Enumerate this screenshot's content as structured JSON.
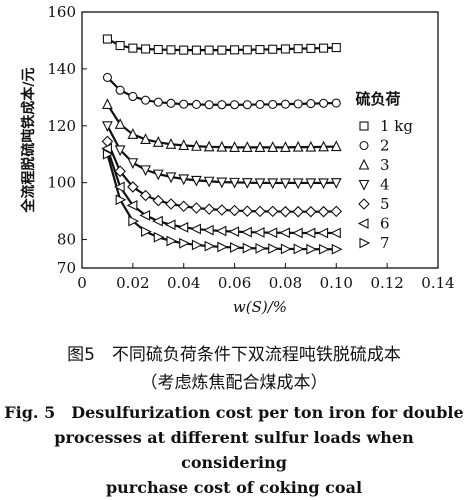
{
  "chart_data": {
    "type": "line",
    "xlabel": "w(S)/%",
    "ylabel": "全流程脱硫吨铁成本/元",
    "xlim": [
      0,
      0.14
    ],
    "ylim": [
      70,
      160
    ],
    "x_ticks": [
      0,
      0.02,
      0.04,
      0.06,
      0.08,
      0.1,
      0.12,
      0.14
    ],
    "x_tick_labels": [
      "0",
      "0.02",
      "0.04",
      "0.06",
      "0.08",
      "0.10",
      "0.12",
      "0.14"
    ],
    "y_ticks": [
      70,
      80,
      100,
      120,
      140,
      160
    ],
    "y_tick_labels": [
      "70",
      "80",
      "100",
      "120",
      "140",
      "160"
    ],
    "grid": false,
    "legend": {
      "title": "硫负荷",
      "position": "right"
    },
    "x": [
      0.01,
      0.015,
      0.02,
      0.025,
      0.03,
      0.035,
      0.04,
      0.045,
      0.05,
      0.055,
      0.06,
      0.065,
      0.07,
      0.075,
      0.08,
      0.085,
      0.09,
      0.095,
      0.1
    ],
    "series": [
      {
        "name": "1 kg",
        "marker": "square",
        "values": [
          150.5,
          148.2,
          147.3,
          147.0,
          146.8,
          146.7,
          146.6,
          146.6,
          146.6,
          146.6,
          146.7,
          146.7,
          146.8,
          146.9,
          147.0,
          147.1,
          147.2,
          147.3,
          147.5
        ]
      },
      {
        "name": "2",
        "marker": "circle",
        "values": [
          137.0,
          132.5,
          130.3,
          129.0,
          128.3,
          127.9,
          127.6,
          127.5,
          127.4,
          127.4,
          127.4,
          127.4,
          127.5,
          127.5,
          127.6,
          127.7,
          127.8,
          127.9,
          128.0
        ]
      },
      {
        "name": "3",
        "marker": "triangle-up",
        "values": [
          127.5,
          120.5,
          117.0,
          115.2,
          114.2,
          113.5,
          113.1,
          112.8,
          112.6,
          112.5,
          112.4,
          112.4,
          112.4,
          112.4,
          112.4,
          112.5,
          112.5,
          112.6,
          112.7
        ]
      },
      {
        "name": "4",
        "marker": "triangle-down",
        "values": [
          120.0,
          111.5,
          107.0,
          104.5,
          103.0,
          102.0,
          101.3,
          100.8,
          100.5,
          100.2,
          100.1,
          100.0,
          99.9,
          99.9,
          99.9,
          99.9,
          99.9,
          99.9,
          100.0
        ]
      },
      {
        "name": "5",
        "marker": "diamond",
        "values": [
          114.5,
          104.0,
          98.5,
          95.5,
          93.7,
          92.5,
          91.7,
          91.1,
          90.7,
          90.4,
          90.2,
          90.0,
          89.9,
          89.9,
          89.8,
          89.8,
          89.8,
          89.8,
          89.9
        ]
      },
      {
        "name": "6",
        "marker": "triangle-left",
        "values": [
          112.0,
          98.5,
          92.0,
          88.5,
          86.5,
          85.2,
          84.3,
          83.7,
          83.3,
          83.0,
          82.8,
          82.6,
          82.5,
          82.4,
          82.4,
          82.3,
          82.3,
          82.3,
          82.3
        ]
      },
      {
        "name": "7",
        "marker": "triangle-right",
        "values": [
          110.0,
          94.0,
          86.5,
          82.8,
          80.8,
          79.5,
          78.7,
          78.1,
          77.7,
          77.4,
          77.2,
          77.0,
          76.9,
          76.8,
          76.7,
          76.7,
          76.6,
          76.6,
          76.6
        ]
      }
    ]
  },
  "caption": {
    "cn_line1": "图5　不同硫负荷条件下双流程吨铁脱硫成本",
    "cn_line2": "（考虑炼焦配合煤成本）",
    "en_line1": "Fig. 5　Desulfurization cost per ton iron for double",
    "en_line2": "processes at different sulfur loads when considering",
    "en_line3": "purchase cost of coking coal"
  }
}
